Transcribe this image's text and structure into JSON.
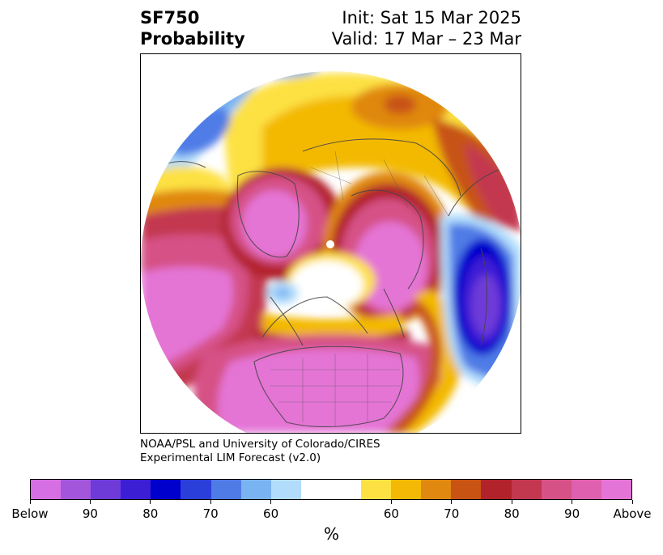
{
  "header": {
    "title_line1": "SF750",
    "title_line2": "Probability",
    "init": "Init: Sat 15 Mar 2025",
    "valid": "Valid: 17 Mar – 23 Mar"
  },
  "credit": {
    "line1": "NOAA/PSL and University of Colorado/CIRES",
    "line2": "Experimental LIM Forecast (v2.0)"
  },
  "colorbar": {
    "colors": [
      "#d66fe3",
      "#a356dc",
      "#6e3bd8",
      "#3c1ed4",
      "#0000cc",
      "#2a3fd9",
      "#4f7be6",
      "#7ab3f2",
      "#b1dcfb",
      "#ffffff",
      "#ffffff",
      "#fde143",
      "#f3b905",
      "#e0880f",
      "#c85312",
      "#b2222a",
      "#c3374f",
      "#d65186",
      "#de60ae",
      "#e474d5"
    ],
    "tick_labels": [
      "Below",
      "90",
      "80",
      "70",
      "60",
      "60",
      "70",
      "80",
      "90",
      "Above"
    ],
    "unit": "%"
  },
  "map": {
    "projection": "north-polar-stereographic",
    "region": "Northern Hemisphere / North America"
  }
}
